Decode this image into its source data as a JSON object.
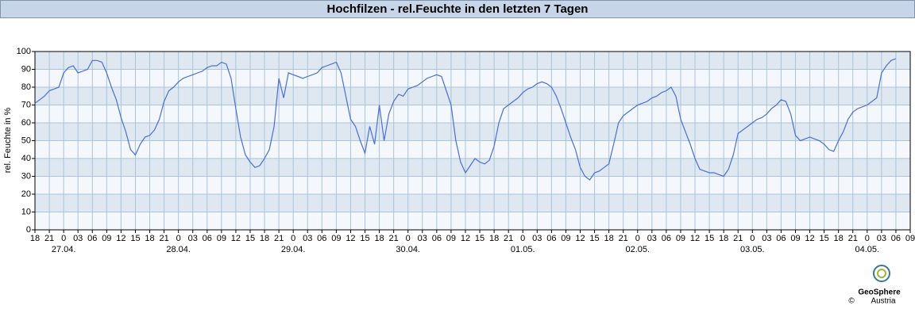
{
  "chart_data": {
    "type": "line",
    "title": "Hochfilzen - rel.Feuchte in den letzten 7 Tagen",
    "y_label": "rel. Feuchte in %",
    "categories": [
      "18",
      null,
      null,
      "21",
      null,
      null,
      "0",
      null,
      null,
      "03",
      null,
      null,
      "06",
      null,
      null,
      "09",
      null,
      null,
      "12",
      null,
      null,
      "15",
      null,
      null,
      "18",
      null,
      null,
      "21",
      null,
      null,
      "0",
      null,
      null,
      "03",
      null,
      null,
      "06",
      null,
      null,
      "09",
      null,
      null,
      "12",
      null,
      null,
      "15",
      null,
      null,
      "18",
      null,
      null,
      "21",
      null,
      null,
      "0",
      null,
      null,
      "03",
      null,
      null,
      "06",
      null,
      null,
      "09",
      null,
      null,
      "12",
      null,
      null,
      "15",
      null,
      null,
      "18",
      null,
      null,
      "21",
      null,
      null,
      "0",
      null,
      null,
      "03",
      null,
      null,
      "06",
      null,
      null,
      "09",
      null,
      null,
      "12",
      null,
      null,
      "15",
      null,
      null,
      "18",
      null,
      null,
      "21",
      null,
      null,
      "0",
      null,
      null,
      "03",
      null,
      null,
      "06",
      null,
      null,
      "09",
      null,
      null,
      "12",
      null,
      null,
      "15",
      null,
      null,
      "18",
      null,
      null,
      "21",
      null,
      null,
      "0",
      null,
      null,
      "03",
      null,
      null,
      "06",
      null,
      null,
      "09",
      null,
      null,
      "12",
      null,
      null,
      "15",
      null,
      null,
      "18",
      null,
      null,
      "21",
      null,
      null,
      "0",
      null,
      null,
      "03",
      null,
      null,
      "06",
      null,
      null,
      "09",
      null,
      null,
      "12",
      null,
      null,
      "15",
      null,
      null,
      "18",
      null,
      null,
      "21",
      null,
      null,
      "0",
      null,
      null,
      "03",
      null,
      null,
      "06",
      null,
      null,
      "09"
    ],
    "dates": [
      "27.04.",
      "28.04.",
      "29.04.",
      "30.04.",
      "01.05.",
      "02.05.",
      "03.05.",
      "04.05."
    ],
    "values": [
      71,
      73,
      75,
      78,
      79,
      80,
      88,
      91,
      92,
      88,
      89,
      90,
      95,
      95,
      94,
      88,
      80,
      73,
      63,
      55,
      45,
      42,
      48,
      52,
      53,
      56,
      62,
      72,
      78,
      80,
      83,
      85,
      86,
      87,
      88,
      89,
      91,
      92,
      92,
      94,
      93,
      85,
      68,
      52,
      42,
      38,
      35,
      36,
      40,
      45,
      58,
      85,
      74,
      88,
      87,
      86,
      85,
      86,
      87,
      88,
      91,
      92,
      93,
      94,
      88,
      75,
      62,
      58,
      50,
      43,
      58,
      48,
      70,
      50,
      65,
      72,
      76,
      75,
      79,
      80,
      81,
      83,
      85,
      86,
      87,
      86,
      78,
      70,
      50,
      38,
      32,
      36,
      40,
      38,
      37,
      39,
      47,
      60,
      68,
      70,
      72,
      74,
      77,
      79,
      80,
      82,
      83,
      82,
      80,
      75,
      68,
      60,
      52,
      45,
      35,
      30,
      28,
      32,
      33,
      35,
      37,
      48,
      60,
      64,
      66,
      68,
      70,
      71,
      72,
      74,
      75,
      77,
      78,
      80,
      75,
      62,
      55,
      48,
      40,
      34,
      33,
      32,
      32,
      31,
      30,
      34,
      42,
      54,
      56,
      58,
      60,
      62,
      63,
      65,
      68,
      70,
      73,
      72,
      65,
      53,
      50,
      51,
      52,
      51,
      50,
      48,
      45,
      44,
      50,
      55,
      62,
      66,
      68,
      69,
      70,
      72,
      74,
      88,
      92,
      95,
      96,
      null,
      null,
      null
    ],
    "color": "#4a6fd6",
    "ylim": [
      0,
      100
    ],
    "yticks": [
      0,
      10,
      20,
      30,
      40,
      50,
      60,
      70,
      80,
      90,
      100
    ],
    "grid": true,
    "footer": {
      "logo_text": "GeoSphere",
      "logo_sub": "Austria",
      "copyright": "©"
    }
  }
}
